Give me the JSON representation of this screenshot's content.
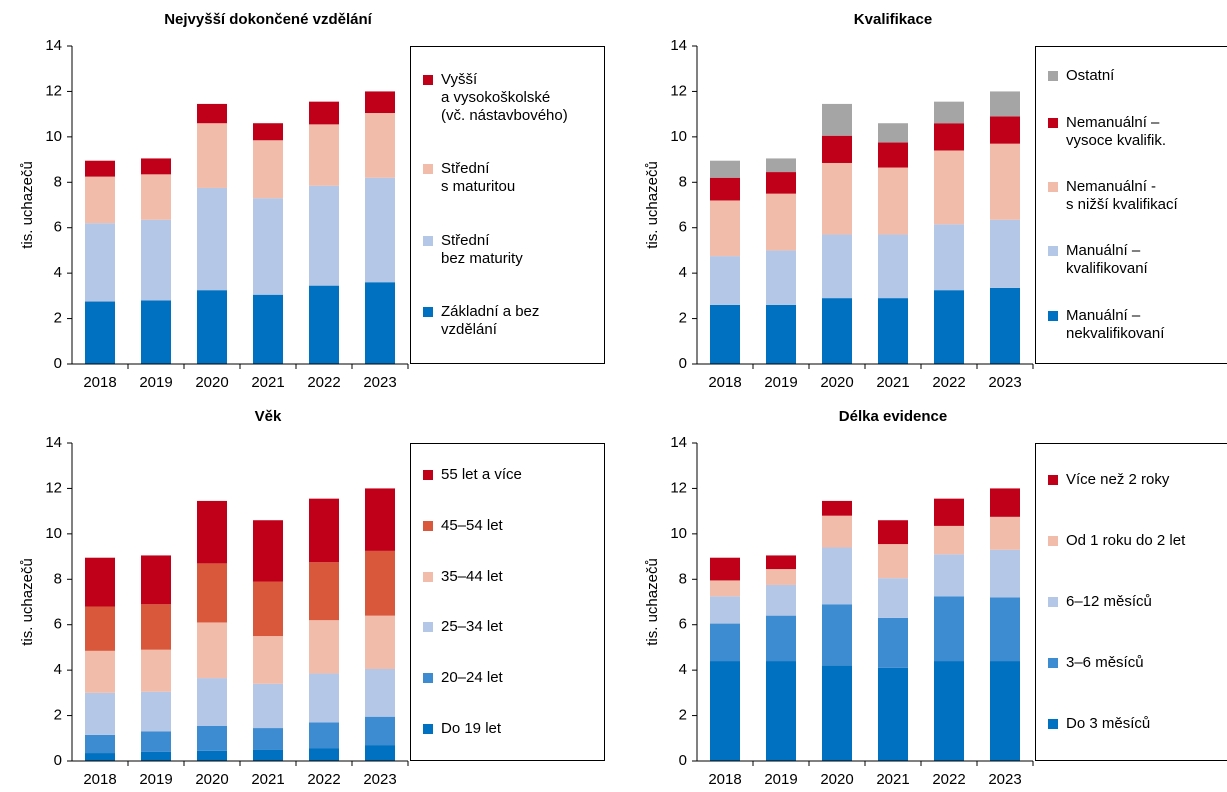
{
  "chart_data": [
    {
      "type": "bar",
      "stacked": true,
      "title": "Nejvyšší dokončené vzdělání",
      "y_label": "tis. uchazečů",
      "categories": [
        "2018",
        "2019",
        "2020",
        "2021",
        "2022",
        "2023"
      ],
      "ylim": [
        0,
        14
      ],
      "yticks": [
        0,
        2,
        4,
        6,
        8,
        10,
        12,
        14
      ],
      "series": [
        {
          "name": "Základní a bez\nvzdělání",
          "color": "#0070c0",
          "values": [
            2.75,
            2.8,
            3.25,
            3.05,
            3.45,
            3.6
          ]
        },
        {
          "name": "Střední\nbez maturity",
          "color": "#b4c7e7",
          "values": [
            3.45,
            3.55,
            4.5,
            4.25,
            4.4,
            4.6
          ]
        },
        {
          "name": "Střední\ns maturitou",
          "color": "#f2bcab",
          "values": [
            2.05,
            2.0,
            2.85,
            2.55,
            2.7,
            2.85
          ]
        },
        {
          "name": "Vyšší\na vysokoškolské\n(vč. nástavbového)",
          "color": "#c00018",
          "values": [
            0.7,
            0.7,
            0.85,
            0.75,
            1.0,
            0.95
          ]
        }
      ]
    },
    {
      "type": "bar",
      "stacked": true,
      "title": "Kvalifikace",
      "y_label": "tis. uchazečů",
      "categories": [
        "2018",
        "2019",
        "2020",
        "2021",
        "2022",
        "2023"
      ],
      "ylim": [
        0,
        14
      ],
      "yticks": [
        0,
        2,
        4,
        6,
        8,
        10,
        12,
        14
      ],
      "series": [
        {
          "name": "Manuální –\nnekvalifikovaní",
          "color": "#0070c0",
          "values": [
            2.6,
            2.6,
            2.9,
            2.9,
            3.25,
            3.35
          ]
        },
        {
          "name": "Manuální –\nkvalifikovaní",
          "color": "#b4c7e7",
          "values": [
            2.15,
            2.4,
            2.8,
            2.8,
            2.9,
            3.0
          ]
        },
        {
          "name": "Nemanuální -\ns nižší kvalifikací",
          "color": "#f2bcab",
          "values": [
            2.45,
            2.5,
            3.15,
            2.95,
            3.25,
            3.35
          ]
        },
        {
          "name": "Nemanuální –\nvysoce kvalifik.",
          "color": "#c00018",
          "values": [
            1.0,
            0.95,
            1.2,
            1.1,
            1.2,
            1.2
          ]
        },
        {
          "name": "Ostatní",
          "color": "#a5a5a5",
          "values": [
            0.75,
            0.6,
            1.4,
            0.85,
            0.95,
            1.1
          ]
        }
      ]
    },
    {
      "type": "bar",
      "stacked": true,
      "title": "Věk",
      "y_label": "tis. uchazečů",
      "categories": [
        "2018",
        "2019",
        "2020",
        "2021",
        "2022",
        "2023"
      ],
      "ylim": [
        0,
        14
      ],
      "yticks": [
        0,
        2,
        4,
        6,
        8,
        10,
        12,
        14
      ],
      "series": [
        {
          "name": "Do 19 let",
          "color": "#0070c0",
          "values": [
            0.35,
            0.4,
            0.45,
            0.5,
            0.55,
            0.7
          ]
        },
        {
          "name": "20–24 let",
          "color": "#3d8bd0",
          "values": [
            0.8,
            0.9,
            1.1,
            0.95,
            1.15,
            1.25
          ]
        },
        {
          "name": "25–34 let",
          "color": "#b4c7e7",
          "values": [
            1.85,
            1.75,
            2.1,
            1.95,
            2.15,
            2.1
          ]
        },
        {
          "name": "35–44 let",
          "color": "#f2bcab",
          "values": [
            1.85,
            1.85,
            2.45,
            2.1,
            2.35,
            2.35
          ]
        },
        {
          "name": "45–54 let",
          "color": "#d9573a",
          "values": [
            1.95,
            2.0,
            2.6,
            2.4,
            2.55,
            2.85
          ]
        },
        {
          "name": "55 let a více",
          "color": "#c00018",
          "values": [
            2.15,
            2.15,
            2.75,
            2.7,
            2.8,
            2.75
          ]
        }
      ]
    },
    {
      "type": "bar",
      "stacked": true,
      "title": "Délka evidence",
      "y_label": "tis. uchazečů",
      "categories": [
        "2018",
        "2019",
        "2020",
        "2021",
        "2022",
        "2023"
      ],
      "ylim": [
        0,
        14
      ],
      "yticks": [
        0,
        2,
        4,
        6,
        8,
        10,
        12,
        14
      ],
      "series": [
        {
          "name": "Do 3 měsíců",
          "color": "#0070c0",
          "values": [
            4.4,
            4.4,
            4.2,
            4.1,
            4.4,
            4.4
          ]
        },
        {
          "name": "3–6 měsíců",
          "color": "#3d8bd0",
          "values": [
            1.65,
            2.0,
            2.7,
            2.2,
            2.85,
            2.8
          ]
        },
        {
          "name": "6–12 měsíců",
          "color": "#b4c7e7",
          "values": [
            1.2,
            1.35,
            2.5,
            1.75,
            1.85,
            2.1
          ]
        },
        {
          "name": "Od 1 roku do 2 let",
          "color": "#f2bcab",
          "values": [
            0.7,
            0.7,
            1.4,
            1.5,
            1.25,
            1.45
          ]
        },
        {
          "name": "Více než 2 roky",
          "color": "#c00018",
          "values": [
            1.0,
            0.6,
            0.65,
            1.05,
            1.2,
            1.25
          ]
        }
      ]
    }
  ]
}
